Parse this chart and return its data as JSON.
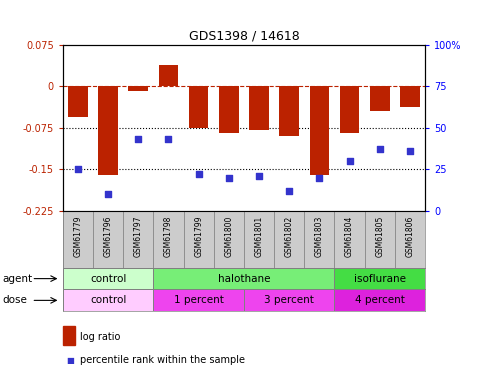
{
  "title": "GDS1398 / 14618",
  "samples": [
    "GSM61779",
    "GSM61796",
    "GSM61797",
    "GSM61798",
    "GSM61799",
    "GSM61800",
    "GSM61801",
    "GSM61802",
    "GSM61803",
    "GSM61804",
    "GSM61805",
    "GSM61806"
  ],
  "log_ratio": [
    -0.055,
    -0.16,
    -0.008,
    0.038,
    -0.075,
    -0.085,
    -0.078,
    -0.09,
    -0.16,
    -0.085,
    -0.045,
    -0.038
  ],
  "percentile_rank": [
    25,
    10,
    43,
    43,
    22,
    20,
    21,
    12,
    20,
    30,
    37,
    36
  ],
  "ylim_left": [
    -0.225,
    0.075
  ],
  "ylim_right": [
    0,
    100
  ],
  "yticks_left": [
    0.075,
    0,
    -0.075,
    -0.15,
    -0.225
  ],
  "yticks_right": [
    100,
    75,
    50,
    25,
    0
  ],
  "hline_dashed": 0,
  "hlines_dotted": [
    -0.075,
    -0.15
  ],
  "bar_color": "#bb2200",
  "dot_color": "#3333cc",
  "agent_groups": [
    {
      "label": "control",
      "start": 0,
      "end": 3,
      "color": "#ccffcc"
    },
    {
      "label": "halothane",
      "start": 3,
      "end": 9,
      "color": "#77ee77"
    },
    {
      "label": "isoflurane",
      "start": 9,
      "end": 12,
      "color": "#44dd44"
    }
  ],
  "dose_groups": [
    {
      "label": "control",
      "start": 0,
      "end": 3,
      "color": "#ffccff"
    },
    {
      "label": "1 percent",
      "start": 3,
      "end": 6,
      "color": "#ee44ee"
    },
    {
      "label": "3 percent",
      "start": 6,
      "end": 9,
      "color": "#ee44ee"
    },
    {
      "label": "4 percent",
      "start": 9,
      "end": 12,
      "color": "#dd22dd"
    }
  ],
  "legend_bar_label": "log ratio",
  "legend_dot_label": "percentile rank within the sample",
  "agent_label": "agent",
  "dose_label": "dose",
  "sample_bg_color": "#cccccc",
  "sample_text_color": "#000000"
}
